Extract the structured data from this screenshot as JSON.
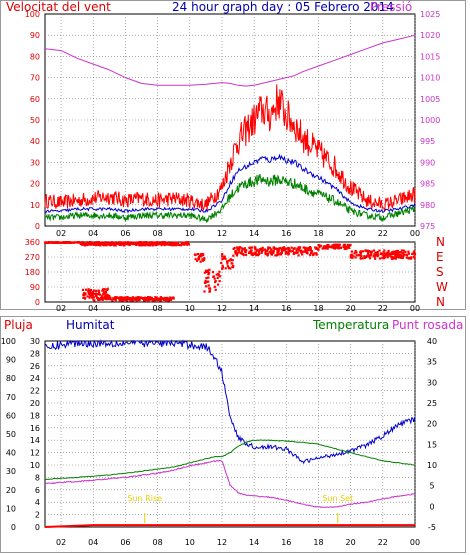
{
  "colors": {
    "wind_gust": "#ff0000",
    "wind_avg": "#0000cc",
    "wind_min": "#008000",
    "pressure": "#cc33cc",
    "direction": "#ff0000",
    "humidity": "#0000cc",
    "temperature": "#008000",
    "dewpoint": "#cc33cc",
    "rain": "#ff0000",
    "sun": "#e8d000",
    "axis_left": "#dd0000",
    "axis_right": "#cc33cc",
    "grid": "#777777"
  },
  "chart_data": [
    {
      "type": "line",
      "title": "24 hour graph day : 05 Febrero 2014",
      "left_label": "Velocitat del vent",
      "right_label": "Pressió",
      "x_ticks": [
        "02",
        "04",
        "06",
        "08",
        "10",
        "12",
        "14",
        "16",
        "18",
        "20",
        "22",
        "00"
      ],
      "xlim": [
        1,
        24
      ],
      "ylim_left": [
        0,
        100
      ],
      "y_ticks_left": [
        "0",
        "10",
        "20",
        "30",
        "40",
        "50",
        "60",
        "70",
        "80",
        "90",
        "100"
      ],
      "ylim_right": [
        970,
        1025
      ],
      "y_ticks_right": [
        "975",
        "980",
        "985",
        "990",
        "995",
        "1000",
        "1005",
        "1010",
        "1015",
        "1020",
        "1025"
      ],
      "grid": true,
      "x": [
        1,
        2,
        3,
        4,
        5,
        6,
        7,
        8,
        9,
        10,
        11,
        12,
        12.5,
        13,
        13.5,
        14,
        14.5,
        15,
        15.5,
        16,
        16.5,
        17,
        18,
        19,
        20,
        21,
        22,
        23,
        24
      ],
      "series": [
        {
          "values": [
            12,
            11,
            12,
            13,
            14,
            12,
            13,
            12,
            13,
            12,
            10,
            18,
            30,
            40,
            45,
            50,
            55,
            52,
            60,
            52,
            48,
            42,
            35,
            28,
            18,
            12,
            10,
            12,
            15
          ]
        },
        {
          "values": [
            7,
            7,
            8,
            8,
            8,
            7,
            8,
            8,
            8,
            8,
            7,
            12,
            20,
            26,
            28,
            30,
            32,
            31,
            33,
            31,
            30,
            27,
            23,
            18,
            11,
            8,
            7,
            8,
            10
          ]
        },
        {
          "values": [
            4,
            4,
            5,
            5,
            5,
            4,
            5,
            5,
            5,
            5,
            3,
            8,
            14,
            18,
            20,
            21,
            22,
            21,
            22,
            21,
            20,
            18,
            15,
            12,
            7,
            5,
            4,
            6,
            8
          ]
        },
        {
          "axis": "right",
          "values": [
            1016,
            1015.5,
            1013.5,
            1012,
            1010.5,
            1008.5,
            1007,
            1006.5,
            1006.5,
            1006.5,
            1006.8,
            1007.2,
            1007,
            1006.5,
            1006.3,
            1006.5,
            1007,
            1007.5,
            1008,
            1008.5,
            1009,
            1010,
            1011.5,
            1013,
            1014.5,
            1016,
            1017.5,
            1018.5,
            1019.5
          ]
        }
      ]
    },
    {
      "type": "scatter",
      "x_ticks": [
        "02",
        "04",
        "06",
        "08",
        "10",
        "12",
        "14",
        "16",
        "18",
        "20",
        "22",
        "00"
      ],
      "xlim": [
        1,
        24
      ],
      "ylim": [
        0,
        360
      ],
      "y_ticks": [
        "0",
        "90",
        "180",
        "270",
        "360"
      ],
      "right_ticks": [
        "N",
        "W",
        "S",
        "E",
        "N"
      ],
      "grid": true,
      "series": [
        {
          "segments": [
            {
              "x": [
                1.0,
                3.2
              ],
              "y": [
                355,
                360
              ]
            },
            {
              "x": [
                3.2,
                10.0
              ],
              "y": [
                340,
                360
              ]
            },
            {
              "x": [
                3.3,
                5.0
              ],
              "y": [
                20,
                80
              ]
            },
            {
              "x": [
                4.0,
                9.0
              ],
              "y": [
                10,
                30
              ]
            },
            {
              "x": [
                10.3,
                10.9
              ],
              "y": [
                240,
                290
              ]
            },
            {
              "x": [
                10.9,
                11.9
              ],
              "y": [
                60,
                200
              ]
            },
            {
              "x": [
                11.9,
                12.7
              ],
              "y": [
                200,
                290
              ]
            },
            {
              "x": [
                12.7,
                18.0
              ],
              "y": [
                280,
                330
              ]
            },
            {
              "x": [
                18.0,
                20.0
              ],
              "y": [
                320,
                345
              ]
            },
            {
              "x": [
                20.0,
                24.0
              ],
              "y": [
                260,
                310
              ]
            }
          ]
        }
      ]
    },
    {
      "type": "line",
      "labels": {
        "rain": "Pluja",
        "humidity": "Humitat",
        "temperature": "Temperatura",
        "dewpoint": "Punt rosada"
      },
      "x_ticks": [
        "02",
        "04",
        "06",
        "08",
        "10",
        "12",
        "14",
        "16",
        "18",
        "20",
        "22",
        "00"
      ],
      "xlim": [
        1,
        24
      ],
      "ylim_rain": [
        0,
        30
      ],
      "y_ticks_rain": [
        "0",
        "2",
        "4",
        "6",
        "8",
        "10",
        "12",
        "14",
        "16",
        "18",
        "20",
        "22",
        "24",
        "26",
        "28",
        "30"
      ],
      "ylim_humidity": [
        0,
        100
      ],
      "y_ticks_humidity": [
        "0",
        "10",
        "20",
        "30",
        "40",
        "50",
        "60",
        "70",
        "80",
        "90",
        "100"
      ],
      "ylim_temp": [
        -5,
        40
      ],
      "y_ticks_temp": [
        "-5",
        "0",
        "5",
        "10",
        "15",
        "20",
        "25",
        "30",
        "35",
        "40"
      ],
      "grid": true,
      "sun_rise": {
        "label": "Sun Rise",
        "x": 7.2
      },
      "sun_set": {
        "label": "Sun Set",
        "x": 19.2
      },
      "x": [
        1,
        2,
        3,
        4,
        5,
        6,
        7,
        8,
        9,
        10,
        11,
        11.5,
        12,
        12.5,
        13,
        13.5,
        14,
        15,
        16,
        17,
        18,
        19,
        20,
        21,
        22,
        23,
        24
      ],
      "series": [
        {
          "axis": "humidity",
          "values": [
            96,
            98,
            99,
            99,
            99,
            99,
            99,
            99,
            99,
            98,
            97,
            92,
            83,
            60,
            48,
            45,
            43,
            43,
            42,
            35,
            37,
            39,
            41,
            44,
            49,
            55,
            58
          ]
        },
        {
          "axis": "temp",
          "values": [
            6.5,
            6.8,
            7,
            7.3,
            7.6,
            8,
            8.5,
            9,
            9.5,
            10.5,
            11.5,
            12,
            12,
            13,
            14.5,
            15.5,
            16,
            16,
            15.8,
            15.5,
            15,
            14,
            13,
            12,
            11,
            10.5,
            10
          ]
        },
        {
          "axis": "temp",
          "values": [
            5.5,
            5.8,
            6,
            6.3,
            6.7,
            7,
            7.5,
            8,
            8.8,
            9.8,
            10.5,
            11,
            11,
            5.2,
            3.3,
            2.7,
            2.5,
            2.2,
            1.5,
            0.5,
            -0.2,
            -0.2,
            0.5,
            1,
            1.8,
            2.5,
            3
          ]
        },
        {
          "axis": "rain",
          "values": [
            0,
            0.1,
            0.2,
            0.3,
            0.3,
            0.3,
            0.3,
            0.3,
            0.3,
            0.3,
            0.3,
            0.3,
            0.3,
            0.3,
            0.3,
            0.3,
            0.3,
            0.3,
            0.3,
            0.3,
            0.3,
            0.3,
            0.3,
            0.3,
            0.3,
            0.3,
            0.3
          ]
        }
      ]
    }
  ]
}
